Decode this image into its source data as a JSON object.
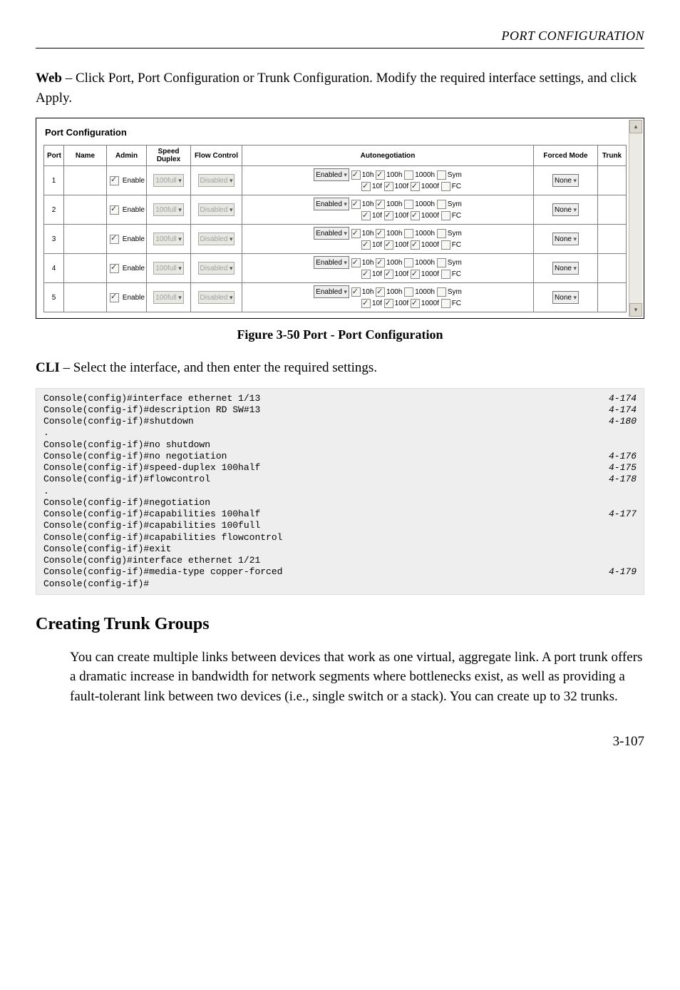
{
  "header": {
    "running_head": "PORT CONFIGURATION"
  },
  "intro": {
    "web_label": "Web",
    "web_text": " – Click Port, Port Configuration or Trunk Configuration. Modify the required interface settings, and click Apply."
  },
  "screenshot": {
    "title": "Port Configuration",
    "columns": [
      "Port",
      "Name",
      "Admin",
      "Speed Duplex",
      "Flow Control",
      "Autonegotiation",
      "Forced Mode",
      "Trunk"
    ],
    "admin_label": "Enable",
    "speed_value": "100full",
    "flow_value": "Disabled",
    "auto_select": "Enabled",
    "forced_value": "None",
    "rows": [
      {
        "port": "1",
        "name": ""
      },
      {
        "port": "2",
        "name": ""
      },
      {
        "port": "3",
        "name": ""
      },
      {
        "port": "4",
        "name": ""
      },
      {
        "port": "5",
        "name": ""
      }
    ],
    "caps": {
      "h10": "10h",
      "h100": "100h",
      "h1000": "1000h",
      "sym": "Sym",
      "f10": "10f",
      "f100": "100f",
      "f1000": "1000f",
      "fc": "FC"
    }
  },
  "figure_caption": "Figure 3-50  Port - Port Configuration",
  "cli_intro": {
    "cli_label": "CLI",
    "cli_text": " – Select the interface, and then enter the required settings."
  },
  "code": [
    {
      "cmd": "Console(config)#interface ethernet 1/13",
      "ref": "4-174"
    },
    {
      "cmd": "Console(config-if)#description RD SW#13",
      "ref": "4-174"
    },
    {
      "cmd": "Console(config-if)#shutdown",
      "ref": "4-180"
    },
    {
      "cmd": ".",
      "ref": ""
    },
    {
      "cmd": "Console(config-if)#no shutdown",
      "ref": ""
    },
    {
      "cmd": "Console(config-if)#no negotiation",
      "ref": "4-176"
    },
    {
      "cmd": "Console(config-if)#speed-duplex 100half",
      "ref": "4-175"
    },
    {
      "cmd": "Console(config-if)#flowcontrol",
      "ref": "4-178"
    },
    {
      "cmd": ".",
      "ref": ""
    },
    {
      "cmd": "Console(config-if)#negotiation",
      "ref": ""
    },
    {
      "cmd": "Console(config-if)#capabilities 100half",
      "ref": "4-177"
    },
    {
      "cmd": "Console(config-if)#capabilities 100full",
      "ref": ""
    },
    {
      "cmd": "Console(config-if)#capabilities flowcontrol",
      "ref": ""
    },
    {
      "cmd": "Console(config-if)#exit",
      "ref": ""
    },
    {
      "cmd": "Console(config)#interface ethernet 1/21",
      "ref": ""
    },
    {
      "cmd": "Console(config-if)#media-type copper-forced",
      "ref": "4-179"
    },
    {
      "cmd": "Console(config-if)#",
      "ref": ""
    }
  ],
  "trunk_section": {
    "heading": "Creating Trunk Groups",
    "para": "You can create multiple links between devices that work as one virtual, aggregate link. A port trunk offers a dramatic increase in bandwidth for network segments where bottlenecks exist, as well as providing a fault-tolerant link between two devices (i.e., single switch or a stack). You can create up to 32 trunks."
  },
  "page_number": "3-107"
}
